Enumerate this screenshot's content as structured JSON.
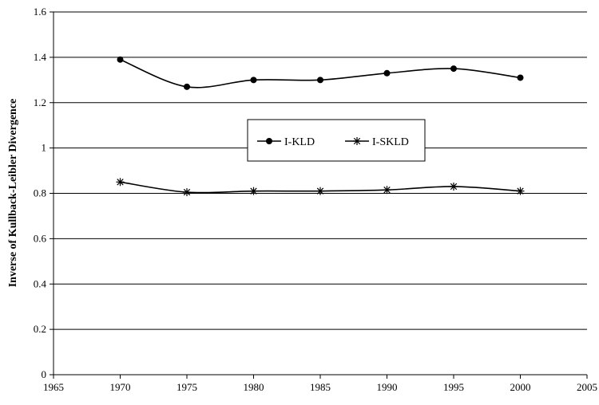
{
  "chart_data": {
    "type": "line",
    "title": "",
    "xlabel": "",
    "ylabel": "Inverse of Kullback-Leibler Divergence",
    "xlim": [
      1965,
      2005
    ],
    "ylim": [
      0,
      1.6
    ],
    "x_ticks": [
      "1965",
      "1970",
      "1975",
      "1980",
      "1985",
      "1990",
      "1995",
      "2000",
      "2005"
    ],
    "y_ticks": [
      "0",
      "0.2",
      "0.4",
      "0.6",
      "0.8",
      "1",
      "1.2",
      "1.4",
      "1.6"
    ],
    "grid": "horizontal",
    "legend_position": "center",
    "series": [
      {
        "name": "I-KLD",
        "marker": "circle",
        "color": "#000000",
        "x": [
          1970,
          1975,
          1980,
          1985,
          1990,
          1995,
          2000
        ],
        "y": [
          1.39,
          1.27,
          1.3,
          1.3,
          1.33,
          1.35,
          1.31
        ]
      },
      {
        "name": "I-SKLD",
        "marker": "asterisk",
        "color": "#000000",
        "x": [
          1970,
          1975,
          1980,
          1985,
          1990,
          1995,
          2000
        ],
        "y": [
          0.85,
          0.805,
          0.81,
          0.81,
          0.815,
          0.83,
          0.81
        ]
      }
    ]
  }
}
